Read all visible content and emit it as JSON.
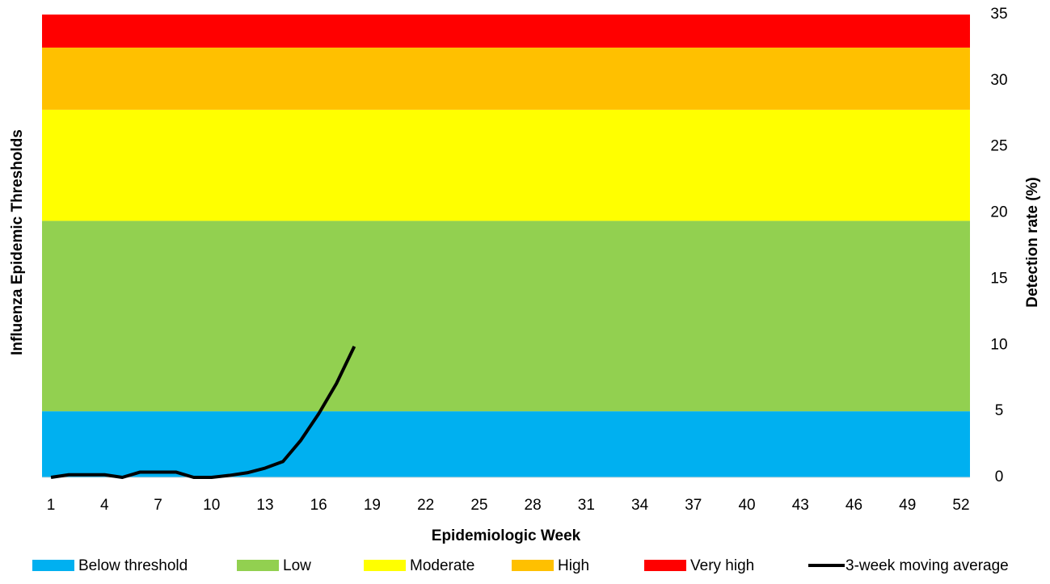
{
  "chart_data": {
    "type": "line",
    "x_label": "Epidemiologic Week",
    "y_label_left": "Influenza Epidemic Thresholds",
    "y_label": "Detection rate (%)",
    "y_axis_side": "right",
    "xlim": [
      0.5,
      52.5
    ],
    "xticks": [
      1,
      4,
      7,
      10,
      13,
      16,
      19,
      22,
      25,
      28,
      31,
      34,
      37,
      40,
      43,
      46,
      49,
      52
    ],
    "ylim": [
      0,
      35
    ],
    "yticks": [
      0,
      5,
      10,
      15,
      20,
      25,
      30,
      35
    ],
    "bands": [
      {
        "name": "Below threshold",
        "color": "#00b0f0",
        "value": 5
      },
      {
        "name": "Low",
        "color": "#92d050",
        "value": 14.4
      },
      {
        "name": "Moderate",
        "color": "#ffff00",
        "value": 8.4
      },
      {
        "name": "High",
        "color": "#ffc000",
        "value": 4.7
      },
      {
        "name": "Very high",
        "color": "#ff0000",
        "value": 2.5
      }
    ],
    "x": [
      1,
      2,
      3,
      4,
      5,
      6,
      7,
      8,
      9,
      10,
      11,
      12,
      13,
      14,
      15,
      16,
      17,
      18
    ],
    "series": [
      {
        "name": "3-week moving average",
        "color": "#000000",
        "values": [
          0,
          0.2,
          0.2,
          0.2,
          0,
          0.4,
          0.4,
          0.4,
          0,
          0,
          0.15,
          0.35,
          0.7,
          1.2,
          2.8,
          4.8,
          7.1,
          9.9
        ]
      }
    ]
  }
}
